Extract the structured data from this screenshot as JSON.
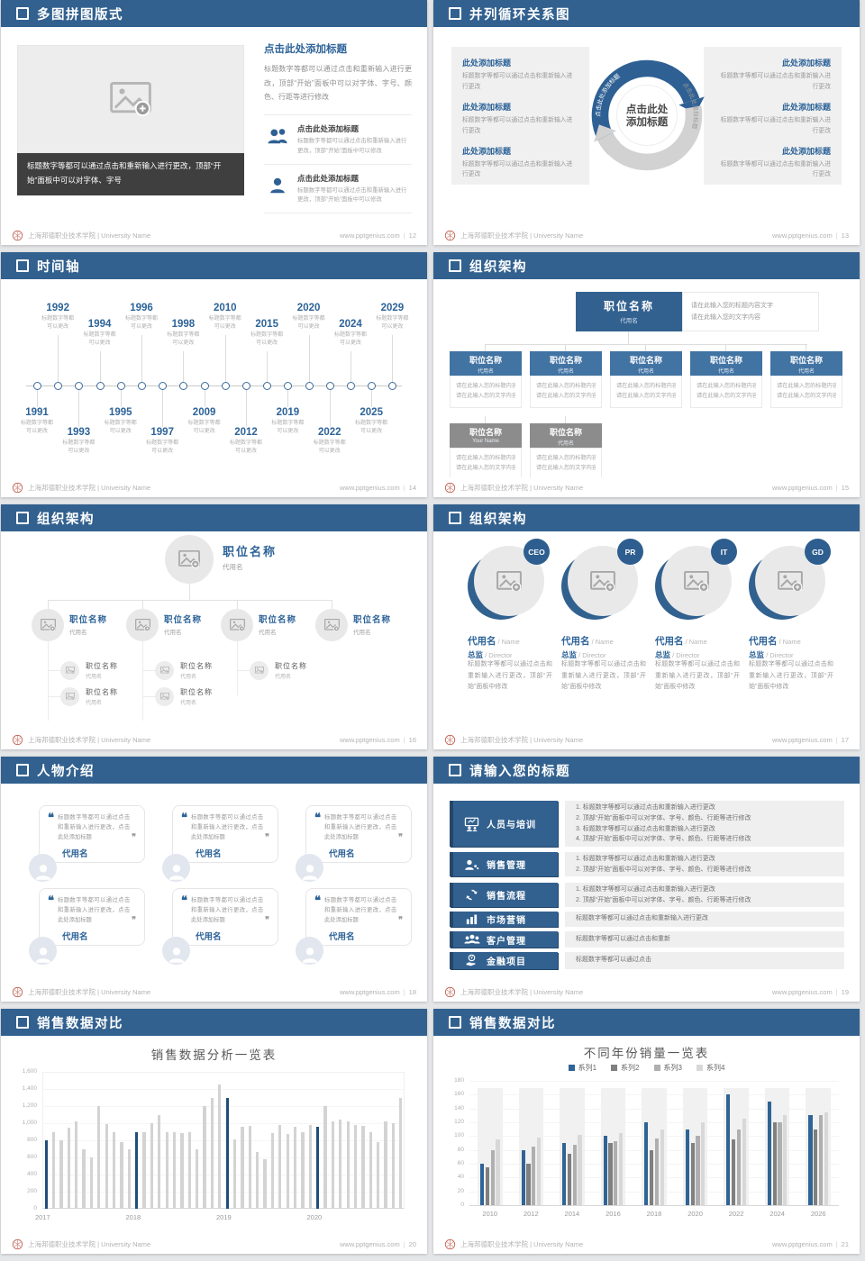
{
  "footer": {
    "org": "上海邦德职业技术学院 | University Name",
    "site": "www.pptgenius.com"
  },
  "slides": {
    "s12": {
      "title": "多图拼图版式",
      "page": "12",
      "caption": "标题数字等都可以通过点击和重新输入进行更改，顶部“开始”面板中可以对字体、字号",
      "right_title": "点击此处添加标题",
      "right_body": "标题数字等都可以通过点击和重新输入进行更改，顶部“开始”面板中可以对字体、字号、颜色、行距等进行修改",
      "items": [
        {
          "title": "点击此处添加标题",
          "body": "标题数字等都可以通过点击和重新输入进行更改，顶部“开始”面板中可以修改"
        },
        {
          "title": "点击此处添加标题",
          "body": "标题数字等都可以通过点击和重新输入进行更改，顶部“开始”面板中可以修改"
        }
      ]
    },
    "s13": {
      "title": "并列循环关系图",
      "page": "13",
      "center_top": "点击此处",
      "center_bottom": "添加标题",
      "arc_label_left": "点击此处添加标题",
      "arc_label_right": "点击此处添加标题",
      "left_items": [
        {
          "t": "此处添加标题",
          "b": "标题数字等都可以通过点击和重新输入进行更改"
        },
        {
          "t": "此处添加标题",
          "b": "标题数字等都可以通过点击和重新输入进行更改"
        },
        {
          "t": "此处添加标题",
          "b": "标题数字等都可以通过点击和重新输入进行更改"
        }
      ],
      "right_items": [
        {
          "t": "此处添加标题",
          "b": "标题数字等都可以通过点击和重新输入进行更改"
        },
        {
          "t": "此处添加标题",
          "b": "标题数字等都可以通过点击和重新输入进行更改"
        },
        {
          "t": "此处添加标题",
          "b": "标题数字等都可以通过点击和重新输入进行更改"
        }
      ]
    },
    "s14": {
      "title": "时间轴",
      "page": "14",
      "note_l1": "标题数字等都",
      "note_l2": "可以更改",
      "timeline": [
        {
          "year": "1991",
          "side": "below",
          "tier": 0
        },
        {
          "year": "1992",
          "side": "above",
          "tier": 0
        },
        {
          "year": "1993",
          "side": "below",
          "tier": 1
        },
        {
          "year": "1994",
          "side": "above",
          "tier": 1
        },
        {
          "year": "1995",
          "side": "below",
          "tier": 0
        },
        {
          "year": "1996",
          "side": "above",
          "tier": 0
        },
        {
          "year": "1997",
          "side": "below",
          "tier": 1
        },
        {
          "year": "1998",
          "side": "above",
          "tier": 1
        },
        {
          "year": "2009",
          "side": "below",
          "tier": 0
        },
        {
          "year": "2010",
          "side": "above",
          "tier": 0
        },
        {
          "year": "2012",
          "side": "below",
          "tier": 1
        },
        {
          "year": "2015",
          "side": "above",
          "tier": 1
        },
        {
          "year": "2019",
          "side": "below",
          "tier": 0
        },
        {
          "year": "2020",
          "side": "above",
          "tier": 0
        },
        {
          "year": "2022",
          "side": "below",
          "tier": 1
        },
        {
          "year": "2024",
          "side": "above",
          "tier": 1
        },
        {
          "year": "2025",
          "side": "below",
          "tier": 0
        },
        {
          "year": "2029",
          "side": "above",
          "tier": 0
        }
      ]
    },
    "s15": {
      "title": "组织架构",
      "page": "15",
      "root": {
        "title": "职位名称",
        "sub": "代用名"
      },
      "root_info": [
        "请在此输入您的标题内容文字",
        "请在此输入您的文字内容"
      ],
      "box_lines": [
        "请在此输入您的标题内容文字",
        "请在此输入您的文字内容"
      ],
      "boxes": [
        {
          "title": "职位名称",
          "sub": "代用名"
        },
        {
          "title": "职位名称",
          "sub": "代用名"
        },
        {
          "title": "职位名称",
          "sub": "代用名"
        },
        {
          "title": "职位名称",
          "sub": "代用名"
        },
        {
          "title": "职位名称",
          "sub": "代用名"
        }
      ],
      "boxes_gray": [
        {
          "title": "职位名称",
          "sub": "Your Name"
        },
        {
          "title": "职位名称",
          "sub": "代用名"
        }
      ]
    },
    "s16": {
      "title": "组织架构",
      "page": "16",
      "root": {
        "title": "职位名称",
        "sub": "代用名"
      },
      "children": [
        {
          "title": "职位名称",
          "sub": "代用名",
          "subs": 2
        },
        {
          "title": "职位名称",
          "sub": "代用名",
          "subs": 2
        },
        {
          "title": "职位名称",
          "sub": "代用名",
          "subs": 1
        },
        {
          "title": "职位名称",
          "sub": "代用名",
          "subs": 0
        }
      ],
      "sub_item": {
        "title": "职位名称",
        "sub": "代用名"
      }
    },
    "s17": {
      "title": "组织架构",
      "page": "17",
      "columns": [
        {
          "badge": "CEO",
          "name": "代用名",
          "name_en": "Name",
          "role": "总监",
          "role_en": "Director",
          "body": "标题数字等都可以通过点击和重新输入进行更改，顶部“开始”面板中修改"
        },
        {
          "badge": "PR",
          "name": "代用名",
          "name_en": "Name",
          "role": "总监",
          "role_en": "Director",
          "body": "标题数字等都可以通过点击和重新输入进行更改，顶部“开始”面板中修改"
        },
        {
          "badge": "IT",
          "name": "代用名",
          "name_en": "Name",
          "role": "总监",
          "role_en": "Director",
          "body": "标题数字等都可以通过点击和重新输入进行更改，顶部“开始”面板中修改"
        },
        {
          "badge": "GD",
          "name": "代用名",
          "name_en": "Name",
          "role": "总监",
          "role_en": "Director",
          "body": "标题数字等都可以通过点击和重新输入进行更改，顶部“开始”面板中修改"
        }
      ]
    },
    "s18": {
      "title": "人物介绍",
      "page": "18",
      "cards": [
        {
          "quote": "标题数字等都可以通过点击和重新输入进行更改，点击此处添加标题",
          "name": "代用名"
        },
        {
          "quote": "标题数字等都可以通过点击和重新输入进行更改，点击此处添加标题",
          "name": "代用名"
        },
        {
          "quote": "标题数字等都可以通过点击和重新输入进行更改，点击此处添加标题",
          "name": "代用名"
        },
        {
          "quote": "标题数字等都可以通过点击和重新输入进行更改，点击此处添加标题",
          "name": "代用名"
        },
        {
          "quote": "标题数字等都可以通过点击和重新输入进行更改，点击此处添加标题",
          "name": "代用名"
        },
        {
          "quote": "标题数字等都可以通过点击和重新输入进行更改，点击此处添加标题",
          "name": "代用名"
        }
      ]
    },
    "s19": {
      "title": "请输入您的标题",
      "page": "19",
      "rows": [
        {
          "label": "人员与培训",
          "icon": "training-icon",
          "lines": [
            "1.   标题数字等都可以通过点击和重新输入进行更改",
            "2.   顶部“开始”面板中可以对字体、字号、颜色、行距等进行修改",
            "3.   标题数字等都可以通过点击和重新输入进行更改",
            "4.   顶部“开始”面板中可以对字体、字号、颜色、行距等进行修改"
          ]
        },
        {
          "label": "销售管理",
          "icon": "sales-management-icon",
          "lines": [
            "1.   标题数字等都可以通过点击和重新输入进行更改",
            "2.   顶部“开始”面板中可以对字体、字号、颜色、行距等进行修改"
          ]
        },
        {
          "label": "销售流程",
          "icon": "sales-process-icon",
          "lines": [
            "1.   标题数字等都可以通过点击和重新输入进行更改",
            "2.   顶部“开始”面板中可以对字体、字号、颜色、行距等进行修改"
          ]
        },
        {
          "label": "市场营销",
          "icon": "marketing-icon",
          "lines": [
            "标题数字等都可以通过点击和重新输入进行更改"
          ]
        },
        {
          "label": "客户管理",
          "icon": "customer-icon",
          "lines": [
            "标题数字等都可以通过点击和重新"
          ]
        },
        {
          "label": "金融项目",
          "icon": "finance-icon",
          "lines": [
            "标题数字等都可以通过点击"
          ]
        }
      ]
    },
    "s20": {
      "title": "销售数据对比",
      "page": "20"
    },
    "s21": {
      "title": "销售数据对比",
      "page": "21"
    }
  },
  "chart_data": [
    {
      "type": "bar",
      "slide": "20",
      "title": "销售数据分析一览表",
      "categories": [
        "2017",
        "2018",
        "2019",
        "2020"
      ],
      "values_monthly": [
        800,
        900,
        800,
        950,
        1020,
        700,
        600,
        1200,
        990,
        900,
        780,
        700,
        890,
        900,
        1000,
        1100,
        900,
        900,
        880,
        900,
        700,
        1200,
        1300,
        1450,
        1300,
        810,
        960,
        970,
        660,
        580,
        880,
        980,
        870,
        960,
        900,
        980,
        960,
        1200,
        1020,
        1040,
        1020,
        980,
        970,
        900,
        780,
        1020,
        1000,
        1300
      ],
      "accent_indices": [
        0,
        12,
        24,
        36
      ],
      "xlabel": "",
      "ylabel": "",
      "ylim": [
        0,
        1600
      ],
      "ytick_step": 200,
      "grid": true,
      "legend_position": "none",
      "colors": {
        "default": "#d3d3d3",
        "accent": "#1F4E79"
      }
    },
    {
      "type": "bar",
      "slide": "21",
      "title": "不同年份销量一览表",
      "categories": [
        "2010",
        "2012",
        "2014",
        "2016",
        "2018",
        "2020",
        "2022",
        "2024",
        "2026"
      ],
      "series": [
        {
          "name": "系列1",
          "color": "#2E6496",
          "values": [
            60,
            80,
            90,
            100,
            120,
            110,
            160,
            150,
            130
          ]
        },
        {
          "name": "系列2",
          "color": "#7F7F7F",
          "values": [
            55,
            60,
            75,
            90,
            80,
            90,
            95,
            120,
            110
          ]
        },
        {
          "name": "系列3",
          "color": "#AFAFAF",
          "values": [
            80,
            85,
            88,
            92,
            97,
            100,
            110,
            120,
            130
          ]
        },
        {
          "name": "系列4",
          "color": "#D8D8D8",
          "values": [
            95,
            98,
            102,
            105,
            110,
            120,
            125,
            130,
            135
          ]
        }
      ],
      "xlabel": "",
      "ylabel": "",
      "ylim": [
        0,
        180
      ],
      "ytick_step": 20,
      "grid": true,
      "legend_position": "top"
    }
  ],
  "colors": {
    "header_blue": "#32618F",
    "accent_blue": "#2D6398",
    "dark_caption": "#3f3f3f",
    "panel_gray": "#f0f0f0"
  }
}
